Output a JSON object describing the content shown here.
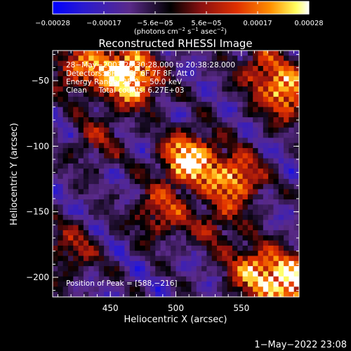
{
  "chart_data": {
    "type": "heatmap",
    "title": "Reconstructed RHESSI Image",
    "xlabel": "Heliocentric X (arcsec)",
    "ylabel": "Heliocentric Y (arcsec)",
    "xlim": [
      406,
      594
    ],
    "ylim": [
      -215,
      -27
    ],
    "x_ticks": [
      450,
      500,
      550
    ],
    "y_ticks": [
      -50,
      -100,
      -150,
      -200
    ],
    "colorbar": {
      "units_text": "(photons cm^-2 s^-1 asec^-2)",
      "units": {
        "open": "(photons cm",
        "exp1": "−2",
        "mid1": " s",
        "exp2": "−1",
        "mid2": " asec",
        "exp3": "−2",
        "close": ")"
      },
      "min": -0.00028,
      "max": 0.00028,
      "tick_labels": [
        "−0.00028",
        "−0.00017",
        "−5.6e−05",
        "5.6e−05",
        "0.00017",
        "0.00028"
      ],
      "colormap": [
        "#0000ff",
        "#4a2aa0",
        "#5a2a8a",
        "#000000",
        "#8a1010",
        "#e03000",
        "#ff9000",
        "#ffff60",
        "#ffffff"
      ]
    },
    "annotations": [
      "28−May−2003 20:30:28.000 to 20:38:28.000",
      "Detectors: 3F 4F 5F 6F 7F 8F, Att 0",
      "Energy Range: 25.0 − 50.0 keV",
      "Clean     Total counts: 6.27E+03"
    ],
    "peak_label": "Position of Peak = [588,−216]",
    "sources": [
      {
        "x": 510,
        "y": -110,
        "intensity": 0.00028
      },
      {
        "x": 545,
        "y": -125,
        "intensity": 0.00022
      },
      {
        "x": 560,
        "y": -195,
        "intensity": 0.00021
      },
      {
        "x": 588,
        "y": -205,
        "intensity": 0.00028
      },
      {
        "x": 468,
        "y": -50,
        "intensity": 0.00022
      },
      {
        "x": 455,
        "y": -40,
        "intensity": 0.00016
      },
      {
        "x": 585,
        "y": -60,
        "intensity": 0.00022
      },
      {
        "x": 565,
        "y": -40,
        "intensity": 0.00013
      },
      {
        "x": 425,
        "y": -40,
        "intensity": 0.00016
      },
      {
        "x": 420,
        "y": -180,
        "intensity": 0.00011
      },
      {
        "x": 488,
        "y": -150,
        "intensity": 0.00015
      },
      {
        "x": 440,
        "y": -95,
        "intensity": 9e-05
      },
      {
        "x": 530,
        "y": -160,
        "intensity": 0.0001
      }
    ]
  },
  "timestamp": "1−May−2022 23:08"
}
